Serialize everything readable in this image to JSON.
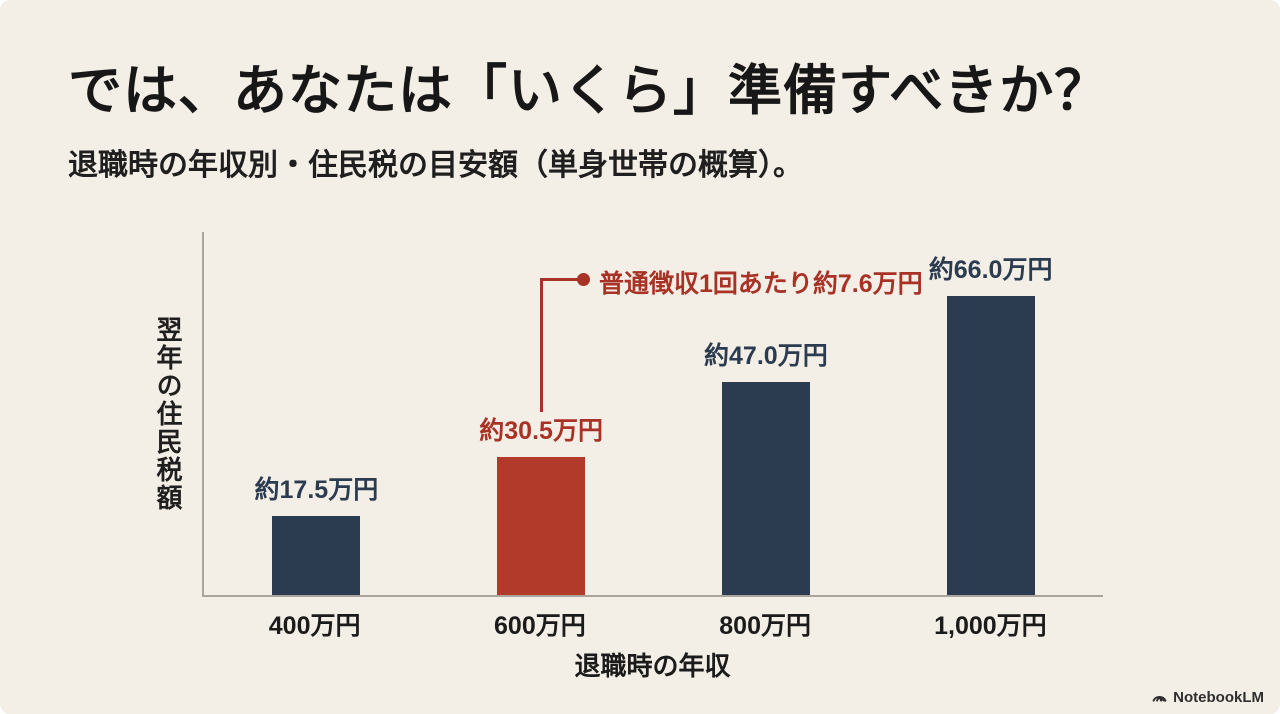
{
  "slide": {
    "title": "では、あなたは「いくら」準備すべきか？",
    "subtitle": "退職時の年収別・住民税の目安額（単身世帯の概算）。"
  },
  "chart_data": {
    "type": "bar",
    "categories": [
      "400万円",
      "600万円",
      "800万円",
      "1,000万円"
    ],
    "values": [
      17.5,
      30.5,
      47.0,
      66.0
    ],
    "value_labels": [
      "約17.5万円",
      "約30.5万円",
      "約47.0万円",
      "約66.0万円"
    ],
    "unit": "万円",
    "highlight_index": 1,
    "xlabel": "退職時の年収",
    "ylabel": "翌年の住民税額",
    "ylim": [
      0,
      80
    ],
    "grid": false,
    "legend": "none",
    "annotation": {
      "text": "普通徴収1回あたり約7.6万円",
      "target_category": "600万円"
    },
    "colors": {
      "bar": "#2b3c51",
      "highlight_bar": "#b23a2a",
      "value_label": "#2b3c51",
      "highlight_value_label": "#a93226",
      "annotation": "#a93226",
      "background": "#f4efe6",
      "axis": "#a9a59c"
    }
  },
  "footer": {
    "brand": "NotebookLM"
  }
}
